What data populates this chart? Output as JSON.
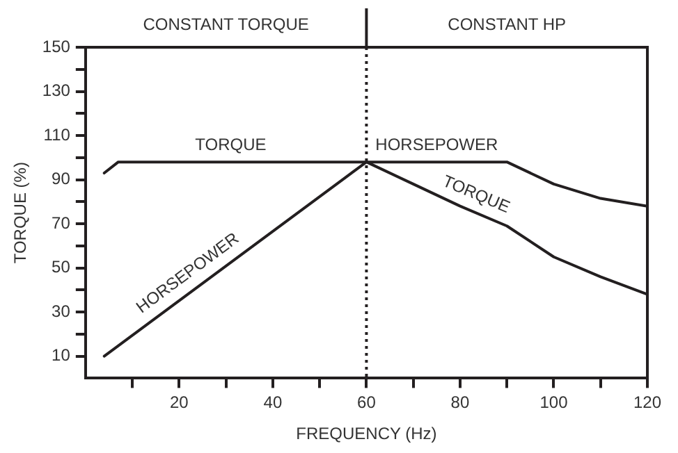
{
  "chart_data": {
    "type": "line",
    "xlabel": "FREQUENCY (Hz)",
    "ylabel": "TORQUE (%)",
    "xlim": [
      0,
      120
    ],
    "ylim": [
      0,
      150
    ],
    "xticks": [
      {
        "value": 10,
        "label": null
      },
      20,
      {
        "value": 30,
        "label": null
      },
      40,
      {
        "value": 50,
        "label": null
      },
      60,
      {
        "value": 70,
        "label": null
      },
      80,
      {
        "value": 90,
        "label": null
      },
      100,
      {
        "value": 110,
        "label": null
      },
      120
    ],
    "yticks": [
      10,
      {
        "value": 20,
        "label": null
      },
      30,
      {
        "value": 40,
        "label": null
      },
      50,
      {
        "value": 60,
        "label": null
      },
      70,
      {
        "value": 80,
        "label": null
      },
      90,
      {
        "value": 100,
        "label": null
      },
      110,
      {
        "value": 120,
        "label": null
      },
      130,
      {
        "value": 140,
        "label": null
      },
      150
    ],
    "series": [
      {
        "color": "#231f20",
        "x": [
          4,
          7,
          60,
          90,
          100,
          110,
          120
        ],
        "values": [
          93,
          98,
          98,
          98,
          88,
          81.5,
          78
        ]
      },
      {
        "color": "#231f20",
        "x": [
          4,
          60,
          70,
          80,
          90,
          100,
          110,
          120
        ],
        "values": [
          10,
          98,
          88,
          78,
          69,
          55,
          46,
          38
        ]
      }
    ],
    "ref_lines": [
      {
        "axis": "x",
        "value": 60,
        "line_style": "dotted",
        "color": "#231f20"
      }
    ],
    "annotations": [
      "CONSTANT TORQUE",
      "CONSTANT HP",
      {
        "text": "TORQUE",
        "x": 31,
        "y": 98
      },
      {
        "text": "HORSEPOWER",
        "x": 24,
        "y": 41.4
      },
      {
        "text": "HORSEPOWER",
        "x": 75,
        "y": 98
      },
      {
        "text": "TORQUE",
        "x": 82,
        "y": 76.2
      }
    ],
    "grid": false,
    "legend": false,
    "marker": "none",
    "line_style": "solid"
  }
}
